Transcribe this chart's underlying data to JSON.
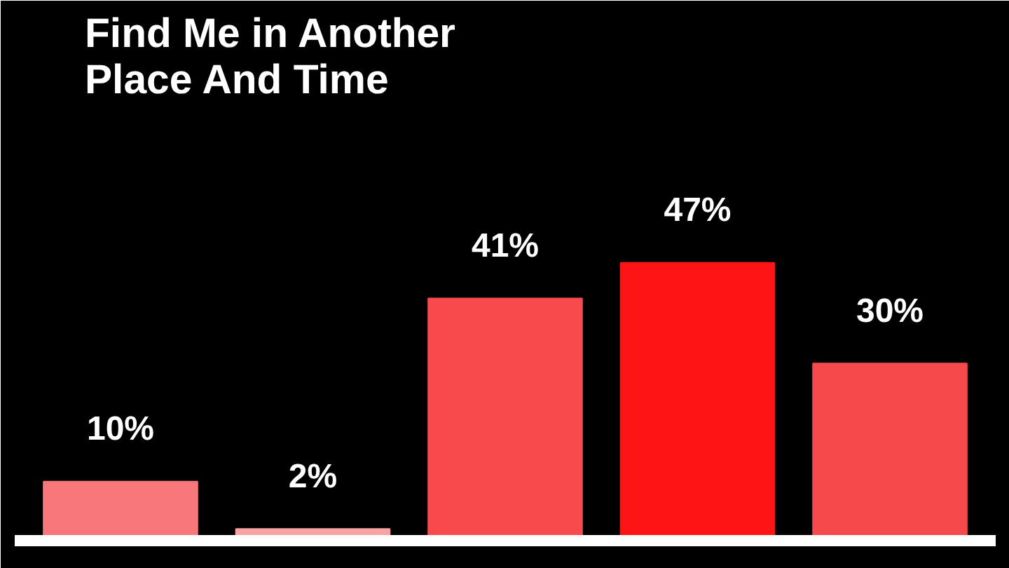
{
  "chart_data": {
    "type": "bar",
    "title": "Find Me in Another Place And Time",
    "categories": [
      null,
      null,
      null,
      null,
      null
    ],
    "values": [
      10,
      2,
      41,
      47,
      30
    ],
    "colors": [
      "#f7777b",
      "#f5a3a3",
      "#f84a4c",
      "#fe1414",
      "#f5494b"
    ],
    "value_labels": [
      "10%",
      "2%",
      "41%",
      "47%",
      "30%"
    ],
    "grid": false
  }
}
